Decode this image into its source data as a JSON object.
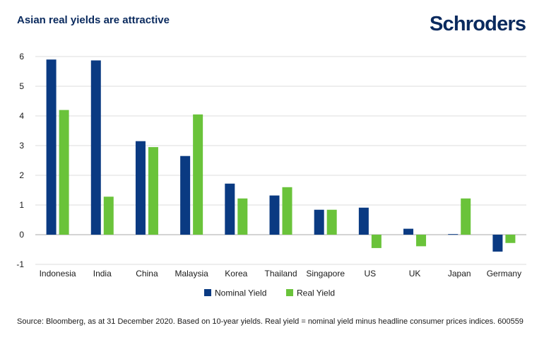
{
  "colors": {
    "nominal": "#0a3a82",
    "real": "#6ac33a",
    "grid": "#dcdcdc",
    "title": "#0a2a5e"
  },
  "header": {
    "title": "Asian real yields are attractive",
    "logo_text": "Schroders"
  },
  "footer": {
    "source": "Source: Bloomberg, as at 31 December 2020. Based on 10-year yields. Real yield = nominal yield minus headline consumer prices indices. 600559"
  },
  "chart_data": {
    "type": "bar",
    "title": "Asian real yields are attractive",
    "xlabel": "",
    "ylabel": "",
    "ylim": [
      -1,
      6
    ],
    "yticks": [
      -1,
      0,
      1,
      2,
      3,
      4,
      5,
      6
    ],
    "grid": true,
    "legend_position": "bottom",
    "categories": [
      "Indonesia",
      "India",
      "China",
      "Malaysia",
      "Korea",
      "Thailand",
      "Singapore",
      "US",
      "UK",
      "Japan",
      "Germany"
    ],
    "series": [
      {
        "name": "Nominal Yield",
        "color": "#0a3a82",
        "values": [
          5.9,
          5.87,
          3.15,
          2.65,
          1.72,
          1.32,
          0.84,
          0.91,
          0.2,
          0.02,
          -0.57
        ]
      },
      {
        "name": "Real Yield",
        "color": "#6ac33a",
        "values": [
          4.2,
          1.28,
          2.95,
          4.05,
          1.22,
          1.6,
          0.84,
          -0.45,
          -0.39,
          1.22,
          -0.28
        ]
      }
    ]
  }
}
